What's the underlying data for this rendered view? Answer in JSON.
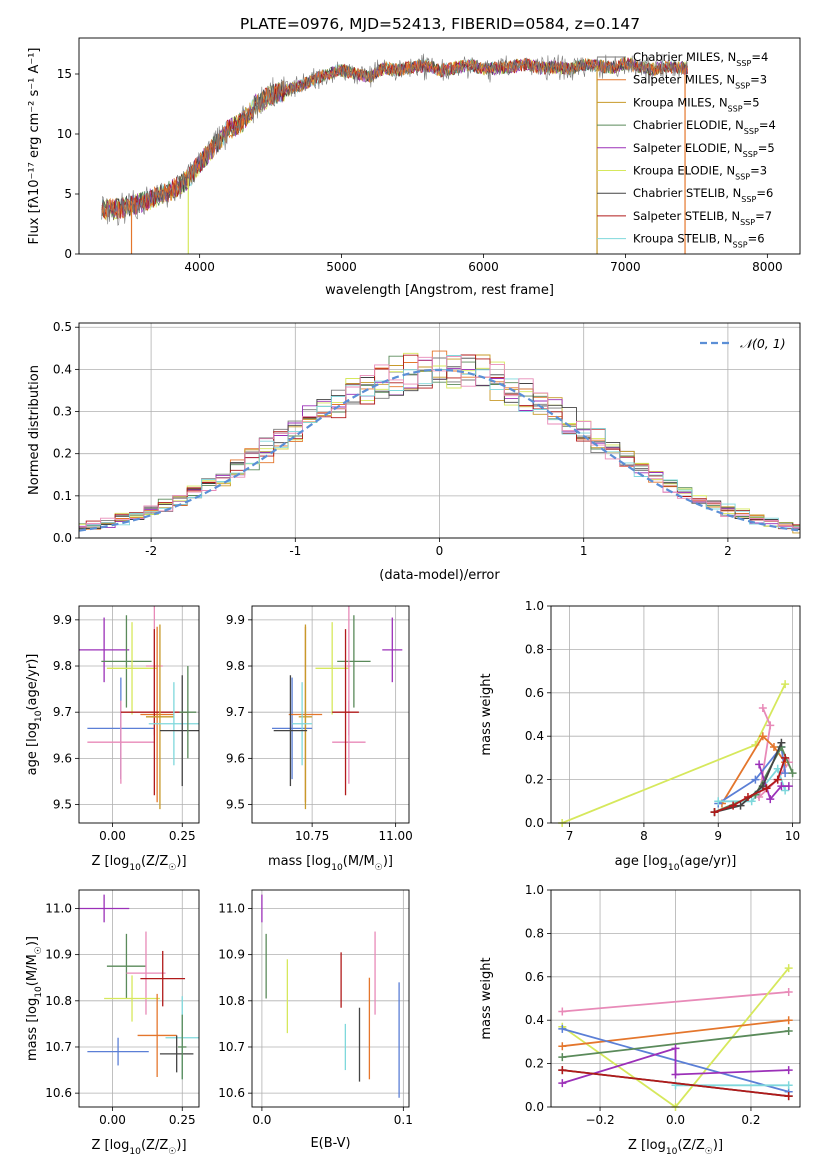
{
  "figure_title": "PLATE=0976, MJD=52413, FIBERID=0584, z=0.147",
  "colors": {
    "Chabrier MILES": "#5b7fd6",
    "Salpeter MILES": "#e4762c",
    "Kroupa MILES": "#c79a2a",
    "Chabrier ELODIE": "#5a8a5a",
    "Salpeter ELODIE": "#9b30b8",
    "Kroupa ELODIE": "#d6e85c",
    "Chabrier STELIB": "#444444",
    "Salpeter STELIB": "#b11a1a",
    "Kroupa STELIB": "#7fd8dc",
    "pink": "#e88ab8"
  },
  "chart_data": [
    {
      "type": "line",
      "panel": "spectrum",
      "title": "",
      "xlabel": "wavelength [Angstrom, rest frame]",
      "ylabel": "Flux [fλ10⁻¹⁷ erg cm⁻² s⁻¹ A⁻¹]",
      "xlim": [
        3150,
        8230
      ],
      "ylim": [
        0,
        18
      ],
      "xticks": [
        4000,
        5000,
        6000,
        7000,
        8000
      ],
      "yticks": [
        0,
        5,
        10,
        15
      ],
      "grid": false,
      "legend_position": "top-right",
      "legend": [
        {
          "name_parts": [
            "Chabrier MILES, N",
            "SSP",
            "=4"
          ],
          "color": "#7a7a7a"
        },
        {
          "name_parts": [
            "Salpeter MILES, N",
            "SSP",
            "=3"
          ],
          "color": "#e4762c"
        },
        {
          "name_parts": [
            "Kroupa MILES, N",
            "SSP",
            "=5"
          ],
          "color": "#c79a2a"
        },
        {
          "name_parts": [
            "Chabrier ELODIE, N",
            "SSP",
            "=4"
          ],
          "color": "#5a8a5a"
        },
        {
          "name_parts": [
            "Salpeter ELODIE, N",
            "SSP",
            "=5"
          ],
          "color": "#9b30b8"
        },
        {
          "name_parts": [
            "Kroupa ELODIE, N",
            "SSP",
            "=3"
          ],
          "color": "#d6e85c"
        },
        {
          "name_parts": [
            "Chabrier STELIB, N",
            "SSP",
            "=6"
          ],
          "color": "#444444"
        },
        {
          "name_parts": [
            "Salpeter STELIB, N",
            "SSP",
            "=7"
          ],
          "color": "#b11a1a"
        },
        {
          "name_parts": [
            "Kroupa STELIB, N",
            "SSP",
            "=6"
          ],
          "color": "#7fd8dc"
        }
      ],
      "data_x": [
        3300,
        3400,
        3500,
        3600,
        3700,
        3800,
        3900,
        4000,
        4100,
        4200,
        4300,
        4400,
        4500,
        4600,
        4700,
        4800,
        4900,
        5000,
        5100,
        5200,
        5300,
        5400,
        5500,
        5600,
        5700,
        5800,
        5900,
        6000,
        6100,
        6200,
        6300,
        6400,
        6500,
        6600,
        6700,
        6800,
        6900,
        7000,
        7100,
        7200,
        7300,
        7400
      ],
      "data_y": [
        3.8,
        3.7,
        4.0,
        4.3,
        4.8,
        5.3,
        6.0,
        7.5,
        9.0,
        10.3,
        11.0,
        12.5,
        13.2,
        13.6,
        14.0,
        14.5,
        15.0,
        15.3,
        15.0,
        14.8,
        15.5,
        15.3,
        15.6,
        15.7,
        15.3,
        15.5,
        15.8,
        15.4,
        15.5,
        15.6,
        15.8,
        15.5,
        15.6,
        15.4,
        15.8,
        15.7,
        15.5,
        15.9,
        15.6,
        15.4,
        15.6,
        15.5
      ],
      "model_drops": [
        {
          "x": 3520,
          "color": "#e4762c"
        },
        {
          "x": 3920,
          "color": "#d6e85c"
        },
        {
          "x": 6800,
          "color": "#c79a2a"
        },
        {
          "x": 7420,
          "color": "#e4762c"
        }
      ]
    },
    {
      "type": "line",
      "panel": "residuals",
      "title": "",
      "xlabel": "(data-model)/error",
      "ylabel": "Normed distribution",
      "xlim": [
        -2.5,
        2.5
      ],
      "ylim": [
        0,
        0.51
      ],
      "xticks": [
        -2,
        -1,
        0,
        1,
        2
      ],
      "yticks": [
        0.0,
        0.1,
        0.2,
        0.3,
        0.4,
        0.5
      ],
      "grid": true,
      "legend_position": "top-right",
      "legend_label": "𝒩(0, 1)",
      "reference_curve": {
        "name": "𝒩(0, 1)",
        "mean": 0,
        "sigma": 1,
        "color": "#5b8fd6",
        "dashed": true
      },
      "bin_width": 0.1
    },
    {
      "type": "scatter",
      "panel": "age-vs-Z",
      "xlabel_parts": [
        "Z [log",
        "10",
        "(Z/Z",
        "☉",
        ")]"
      ],
      "ylabel_parts": [
        "age  [log",
        "10",
        "(age/yr)]"
      ],
      "xlim": [
        -0.12,
        0.31
      ],
      "ylim": [
        9.46,
        9.93
      ],
      "xticks": [
        0.0,
        0.25
      ],
      "xtick_labels": [
        "0.00",
        "0.25"
      ],
      "yticks": [
        9.5,
        9.6,
        9.7,
        9.8,
        9.9
      ],
      "grid": true,
      "points": [
        {
          "color": "#9b30b8",
          "x": -0.03,
          "y": 9.835,
          "xerr": 0.09,
          "yerr": 0.07
        },
        {
          "color": "#5a8a5a",
          "x": 0.05,
          "y": 9.81,
          "xerr": 0.09,
          "yerr": 0.1
        },
        {
          "color": "#d6e85c",
          "x": 0.07,
          "y": 9.795,
          "xerr": 0.09,
          "yerr": 0.1
        },
        {
          "color": "#e88ab8",
          "x": 0.15,
          "y": 9.8,
          "xerr": 0.03,
          "yerr": 0.15
        },
        {
          "color": "#5b7fd6",
          "x": 0.03,
          "y": 9.665,
          "xerr": 0.12,
          "yerr": 0.11
        },
        {
          "color": "#e88ab8",
          "x": 0.03,
          "y": 9.635,
          "xerr": 0.12,
          "yerr": 0.09
        },
        {
          "color": "#e4762c",
          "x": 0.16,
          "y": 9.695,
          "xerr": 0.06,
          "yerr": 0.19
        },
        {
          "color": "#b11a1a",
          "x": 0.15,
          "y": 9.7,
          "xerr": 0.12,
          "yerr": 0.18
        },
        {
          "color": "#c79a2a",
          "x": 0.17,
          "y": 9.69,
          "xerr": 0.05,
          "yerr": 0.2
        },
        {
          "color": "#7fd8dc",
          "x": 0.22,
          "y": 9.675,
          "xerr": 0.09,
          "yerr": 0.09
        },
        {
          "color": "#444444",
          "x": 0.25,
          "y": 9.66,
          "xerr": 0.08,
          "yerr": 0.12
        },
        {
          "color": "#5a8a5a",
          "x": 0.27,
          "y": 9.7,
          "xerr": 0.03,
          "yerr": 0.1
        }
      ]
    },
    {
      "type": "scatter",
      "panel": "age-vs-mass",
      "xlabel_parts": [
        "mass [log",
        "10",
        "(M/M",
        "☉",
        ")]"
      ],
      "ylabel_parts": [],
      "xlim": [
        10.57,
        11.04
      ],
      "ylim": [
        9.46,
        9.93
      ],
      "xticks": [
        10.75,
        11.0
      ],
      "xtick_labels": [
        "10.75",
        "11.00"
      ],
      "yticks": [
        9.5,
        9.6,
        9.7,
        9.8,
        9.9
      ],
      "grid": true,
      "points": [
        {
          "color": "#9b30b8",
          "x": 10.99,
          "y": 9.835,
          "xerr": 0.03,
          "yerr": 0.07
        },
        {
          "color": "#5a8a5a",
          "x": 10.875,
          "y": 9.81,
          "xerr": 0.05,
          "yerr": 0.1
        },
        {
          "color": "#d6e85c",
          "x": 10.81,
          "y": 9.795,
          "xerr": 0.05,
          "yerr": 0.1
        },
        {
          "color": "#e88ab8",
          "x": 10.86,
          "y": 9.8,
          "xerr": 0.005,
          "yerr": 0.15
        },
        {
          "color": "#5b7fd6",
          "x": 10.69,
          "y": 9.665,
          "xerr": 0.06,
          "yerr": 0.11
        },
        {
          "color": "#e88ab8",
          "x": 10.86,
          "y": 9.635,
          "xerr": 0.05,
          "yerr": 0.09
        },
        {
          "color": "#e4762c",
          "x": 10.73,
          "y": 9.695,
          "xerr": 0.05,
          "yerr": 0.19
        },
        {
          "color": "#b11a1a",
          "x": 10.85,
          "y": 9.7,
          "xerr": 0.04,
          "yerr": 0.18
        },
        {
          "color": "#c79a2a",
          "x": 10.73,
          "y": 9.69,
          "xerr": 0.02,
          "yerr": 0.2
        },
        {
          "color": "#7fd8dc",
          "x": 10.72,
          "y": 9.675,
          "xerr": 0.03,
          "yerr": 0.09
        },
        {
          "color": "#444444",
          "x": 10.685,
          "y": 9.66,
          "xerr": 0.05,
          "yerr": 0.12
        }
      ]
    },
    {
      "type": "line",
      "panel": "massweight-vs-age",
      "xlabel_parts": [
        "age  [log",
        "10",
        "(age/yr)]"
      ],
      "ylabel": "mass weight",
      "xlim": [
        6.75,
        10.1
      ],
      "ylim": [
        0,
        1.0
      ],
      "xticks": [
        7,
        8,
        9,
        10
      ],
      "yticks": [
        0.0,
        0.2,
        0.4,
        0.6,
        0.8,
        1.0
      ],
      "grid": true,
      "series": [
        {
          "color": "#d6e85c",
          "x": [
            6.9,
            9.5,
            9.9
          ],
          "y": [
            0.0,
            0.36,
            0.64
          ]
        },
        {
          "color": "#e88ab8",
          "x": [
            9.6,
            9.7,
            9.55,
            9.8,
            9.95
          ],
          "y": [
            0.53,
            0.45,
            0.12,
            0.2,
            0.28
          ]
        },
        {
          "color": "#e4762c",
          "x": [
            9.05,
            9.6,
            9.75,
            9.9
          ],
          "y": [
            0.09,
            0.4,
            0.35,
            0.28
          ]
        },
        {
          "color": "#5b7fd6",
          "x": [
            9.0,
            9.5,
            9.85,
            9.9
          ],
          "y": [
            0.09,
            0.2,
            0.35,
            0.23
          ]
        },
        {
          "color": "#7fd8dc",
          "x": [
            9.0,
            9.45,
            9.8,
            9.9
          ],
          "y": [
            0.1,
            0.1,
            0.25,
            0.15
          ]
        },
        {
          "color": "#5a8a5a",
          "x": [
            8.95,
            9.5,
            9.85,
            10.0
          ],
          "y": [
            0.05,
            0.13,
            0.35,
            0.23
          ]
        },
        {
          "color": "#9b30b8",
          "x": [
            9.55,
            9.7,
            9.85,
            9.95
          ],
          "y": [
            0.27,
            0.11,
            0.17,
            0.17
          ]
        },
        {
          "color": "#444444",
          "x": [
            8.95,
            9.3,
            9.6,
            9.85
          ],
          "y": [
            0.05,
            0.08,
            0.17,
            0.37
          ]
        },
        {
          "color": "#b11a1a",
          "x": [
            8.95,
            9.2,
            9.4,
            9.65,
            9.8,
            9.9
          ],
          "y": [
            0.05,
            0.08,
            0.12,
            0.16,
            0.2,
            0.3
          ]
        }
      ]
    },
    {
      "type": "scatter",
      "panel": "mass-vs-Z",
      "xlabel_parts": [
        "Z [log",
        "10",
        "(Z/Z",
        "☉",
        ")]"
      ],
      "ylabel_parts": [
        "mass [log",
        "10",
        "(M/M",
        "☉",
        ")]"
      ],
      "xlim": [
        -0.12,
        0.31
      ],
      "ylim": [
        10.57,
        11.04
      ],
      "xticks": [
        0.0,
        0.25
      ],
      "xtick_labels": [
        "0.00",
        "0.25"
      ],
      "yticks": [
        10.6,
        10.7,
        10.8,
        10.9,
        11.0
      ],
      "grid": true,
      "points": [
        {
          "color": "#9b30b8",
          "x": -0.03,
          "y": 11.0,
          "xerr": 0.09,
          "yerr": 0.03
        },
        {
          "color": "#5a8a5a",
          "x": 0.05,
          "y": 10.875,
          "xerr": 0.07,
          "yerr": 0.07
        },
        {
          "color": "#e88ab8",
          "x": 0.12,
          "y": 10.86,
          "xerr": 0.07,
          "yerr": 0.09
        },
        {
          "color": "#b11a1a",
          "x": 0.18,
          "y": 10.848,
          "xerr": 0.08,
          "yerr": 0.06
        },
        {
          "color": "#d6e85c",
          "x": 0.07,
          "y": 10.805,
          "xerr": 0.1,
          "yerr": 0.05
        },
        {
          "color": "#e4762c",
          "x": 0.16,
          "y": 10.725,
          "xerr": 0.07,
          "yerr": 0.09
        },
        {
          "color": "#7fd8dc",
          "x": 0.25,
          "y": 10.72,
          "xerr": 0.06,
          "yerr": 0.09
        },
        {
          "color": "#5b7fd6",
          "x": 0.02,
          "y": 10.69,
          "xerr": 0.11,
          "yerr": 0.03
        },
        {
          "color": "#444444",
          "x": 0.23,
          "y": 10.685,
          "xerr": 0.06,
          "yerr": 0.04
        },
        {
          "color": "#5a8a5a",
          "x": 0.25,
          "y": 10.7,
          "xerr": 0.015,
          "yerr": 0.07
        }
      ]
    },
    {
      "type": "scatter",
      "panel": "mass-vs-EBV",
      "xlabel": "E(B-V)",
      "ylabel_parts": [],
      "xlim": [
        -0.007,
        0.104
      ],
      "ylim": [
        10.57,
        11.04
      ],
      "xticks": [
        0.0,
        0.1
      ],
      "xtick_labels": [
        "0.0",
        "0.1"
      ],
      "yticks": [
        10.6,
        10.7,
        10.8,
        10.9,
        11.0
      ],
      "grid": true,
      "points": [
        {
          "color": "#9b30b8",
          "x": 0.0,
          "y": 11.0,
          "yerr": 0.03
        },
        {
          "color": "#5a8a5a",
          "x": 0.003,
          "y": 10.875,
          "yerr": 0.07
        },
        {
          "color": "#d6e85c",
          "x": 0.018,
          "y": 10.81,
          "yerr": 0.08
        },
        {
          "color": "#b11a1a",
          "x": 0.056,
          "y": 10.845,
          "yerr": 0.06
        },
        {
          "color": "#7fd8dc",
          "x": 0.059,
          "y": 10.7,
          "yerr": 0.05
        },
        {
          "color": "#444444",
          "x": 0.069,
          "y": 10.705,
          "yerr": 0.08
        },
        {
          "color": "#e4762c",
          "x": 0.076,
          "y": 10.74,
          "yerr": 0.11
        },
        {
          "color": "#e88ab8",
          "x": 0.08,
          "y": 10.86,
          "yerr": 0.09
        },
        {
          "color": "#5b7fd6",
          "x": 0.097,
          "y": 10.715,
          "yerr": 0.125
        }
      ]
    },
    {
      "type": "line",
      "panel": "massweight-vs-Z",
      "xlabel_parts": [
        "Z [log",
        "10",
        "(Z/Z",
        "☉",
        ")]"
      ],
      "ylabel": "mass weight",
      "xlim": [
        -0.33,
        0.33
      ],
      "ylim": [
        0,
        1.0
      ],
      "xticks": [
        -0.2,
        0.0,
        0.2
      ],
      "xtick_labels": [
        "−0.2",
        "0.0",
        "0.2"
      ],
      "yticks": [
        0.0,
        0.2,
        0.4,
        0.6,
        0.8,
        1.0
      ],
      "grid": true,
      "series": [
        {
          "color": "#e88ab8",
          "x": [
            -0.3,
            0.3
          ],
          "y": [
            0.44,
            0.53
          ]
        },
        {
          "color": "#d6e85c",
          "x": [
            -0.3,
            0.0,
            0.3
          ],
          "y": [
            0.37,
            0.0,
            0.64
          ]
        },
        {
          "color": "#e4762c",
          "x": [
            -0.3,
            0.3
          ],
          "y": [
            0.28,
            0.4
          ]
        },
        {
          "color": "#5b7fd6",
          "x": [
            -0.3,
            0.3
          ],
          "y": [
            0.36,
            0.07
          ]
        },
        {
          "color": "#5a8a5a",
          "x": [
            -0.3,
            0.3
          ],
          "y": [
            0.23,
            0.35
          ]
        },
        {
          "color": "#9b30b8",
          "x": [
            -0.3,
            0.0,
            0.0,
            0.3
          ],
          "y": [
            0.11,
            0.27,
            0.15,
            0.17
          ]
        },
        {
          "color": "#7fd8dc",
          "x": [
            0.0,
            0.3
          ],
          "y": [
            0.1,
            0.1
          ]
        },
        {
          "color": "#444444",
          "x": [
            -0.3,
            0.3
          ],
          "y": [
            0.17,
            0.05
          ]
        },
        {
          "color": "#b11a1a",
          "x": [
            -0.3,
            0.3
          ],
          "y": [
            0.17,
            0.05
          ]
        }
      ]
    }
  ]
}
